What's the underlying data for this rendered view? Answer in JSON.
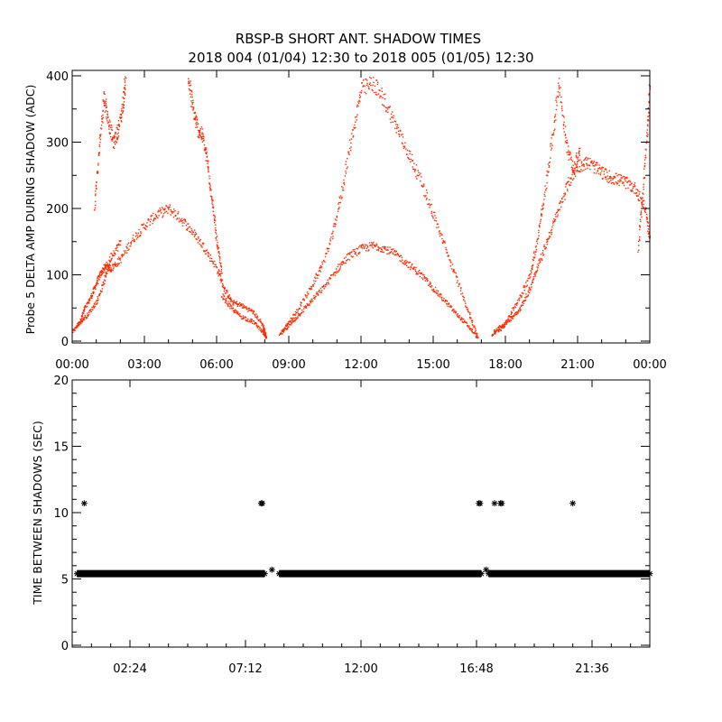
{
  "title_line1": "RBSP-B SHORT ANT. SHADOW TIMES",
  "title_line2": "2018 004 (01/04) 12:30 to 2018 005 (01/05) 12:30",
  "colors": {
    "top_points": "#ff2a00",
    "bottom_points": "#000000",
    "axes": "#000000"
  },
  "chart_data": [
    {
      "type": "scatter",
      "ylabel": "Probe 5 DELTA AMP DURING SHADOW (ADC)",
      "xlabel": "",
      "xlim_hours": [
        0,
        24
      ],
      "ylim": [
        0,
        400
      ],
      "x_tick_labels": [
        "00:00",
        "03:00",
        "06:00",
        "09:00",
        "12:00",
        "15:00",
        "18:00",
        "21:00",
        "00:00"
      ],
      "x_tick_hours": [
        0,
        3,
        6,
        9,
        12,
        15,
        18,
        21,
        24
      ],
      "y_tick_labels": [
        "0",
        "100",
        "200",
        "300",
        "400"
      ],
      "y_ticks": [
        0,
        100,
        200,
        300,
        400
      ],
      "series": [
        {
          "x_hours": [
            0.0,
            0.3,
            0.5,
            0.8,
            1.0,
            1.2,
            1.4,
            1.6,
            2.0,
            2.5,
            3.0,
            3.5,
            4.0,
            4.5,
            5.0,
            5.5,
            6.0,
            6.3,
            6.6,
            7.0,
            7.5,
            7.9,
            8.05
          ],
          "y": [
            15,
            30,
            50,
            70,
            90,
            105,
            115,
            110,
            125,
            155,
            175,
            192,
            200,
            185,
            165,
            140,
            110,
            80,
            60,
            55,
            45,
            25,
            5
          ]
        },
        {
          "x_hours": [
            0.2,
            0.6,
            1.0,
            1.3,
            1.6,
            2.0
          ],
          "y": [
            25,
            40,
            60,
            90,
            130,
            150
          ]
        },
        {
          "x_hours": [
            0.9,
            1.1,
            1.3,
            1.5,
            1.7,
            1.9,
            2.1,
            2.2
          ],
          "y": [
            200,
            290,
            370,
            330,
            300,
            320,
            360,
            400
          ]
        },
        {
          "x_hours": [
            4.8,
            5.0,
            5.2,
            5.4,
            5.6,
            5.8,
            6.0,
            6.2
          ],
          "y": [
            400,
            350,
            320,
            310,
            270,
            210,
            150,
            100
          ]
        },
        {
          "x_hours": [
            6.2,
            6.6,
            7.0,
            7.5,
            7.9,
            8.05
          ],
          "y": [
            70,
            50,
            38,
            30,
            15,
            5
          ]
        },
        {
          "x_hours": [
            8.6,
            9.0,
            9.5,
            10.0,
            10.5,
            11.0,
            11.5,
            12.0,
            12.5,
            13.0,
            13.5,
            14.0,
            14.5,
            15.0,
            15.5,
            16.0,
            16.4,
            16.85
          ],
          "y": [
            10,
            25,
            45,
            65,
            85,
            110,
            130,
            140,
            145,
            140,
            130,
            115,
            100,
            80,
            60,
            40,
            25,
            5
          ]
        },
        {
          "x_hours": [
            8.7,
            9.2,
            9.8,
            10.3,
            10.8,
            11.2,
            11.6,
            12.0,
            12.5,
            13.0,
            13.5,
            14.0,
            14.5,
            15.0,
            15.5,
            16.0,
            16.5,
            16.85
          ],
          "y": [
            15,
            40,
            75,
            110,
            160,
            230,
            310,
            380,
            390,
            360,
            320,
            280,
            240,
            190,
            140,
            90,
            40,
            5
          ]
        },
        {
          "x_hours": [
            17.4,
            17.8,
            18.2,
            18.6,
            19.0,
            19.4,
            19.8,
            20.2,
            20.6,
            21.0,
            21.4,
            21.8,
            22.2,
            22.6,
            23.0,
            23.4,
            23.8,
            24.0
          ],
          "y": [
            10,
            20,
            35,
            50,
            80,
            120,
            160,
            200,
            240,
            265,
            270,
            260,
            250,
            245,
            240,
            230,
            200,
            150
          ]
        },
        {
          "x_hours": [
            17.5,
            18.0,
            18.5,
            19.0,
            19.3,
            19.6,
            19.9,
            20.2,
            20.5,
            20.8,
            21.1
          ],
          "y": [
            15,
            30,
            60,
            100,
            150,
            220,
            300,
            390,
            300,
            260,
            290
          ]
        },
        {
          "x_hours": [
            23.5,
            23.7,
            23.9,
            24.0
          ],
          "y": [
            140,
            230,
            330,
            400
          ]
        }
      ]
    },
    {
      "type": "scatter",
      "ylabel": "TIME BETWEEN SHADOWS (SEC)",
      "xlabel": "",
      "xlim_hours": [
        0,
        24
      ],
      "ylim": [
        0,
        20
      ],
      "x_tick_labels": [
        "02:24",
        "07:12",
        "12:00",
        "16:48",
        "21:36"
      ],
      "x_tick_hours": [
        2.4,
        7.2,
        12.0,
        16.8,
        21.6
      ],
      "y_tick_labels": [
        "0",
        "5",
        "10",
        "15",
        "20"
      ],
      "y_ticks": [
        0,
        5,
        10,
        15,
        20
      ],
      "baseline": {
        "y": 5.4,
        "segments": [
          [
            0.2,
            8.0
          ],
          [
            8.6,
            17.0
          ],
          [
            17.3,
            24.0
          ]
        ]
      },
      "points": {
        "x_hours": [
          0.5,
          7.85,
          7.9,
          8.3,
          10.2,
          11.6,
          16.9,
          16.95,
          17.2,
          17.55,
          17.8,
          17.85,
          20.8
        ],
        "y": [
          10.7,
          10.7,
          10.7,
          5.7,
          5.4,
          5.4,
          10.7,
          10.7,
          5.7,
          10.7,
          10.7,
          10.7,
          10.7
        ]
      }
    }
  ]
}
